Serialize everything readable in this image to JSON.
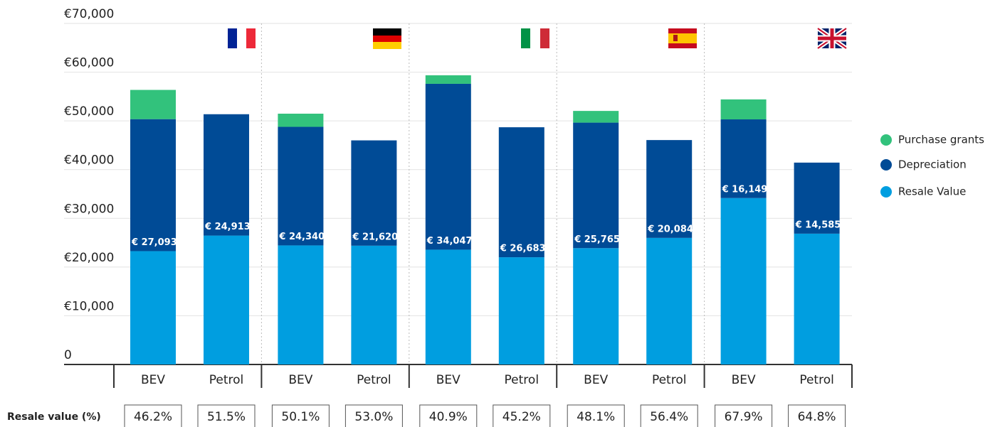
{
  "chart_data": {
    "type": "stacked-bar",
    "categories": [
      "BEV",
      "Petrol",
      "BEV",
      "Petrol",
      "BEV",
      "Petrol",
      "BEV",
      "Petrol",
      "BEV",
      "Petrol"
    ],
    "series": [
      {
        "name": "Resale Value",
        "color": "#009ee0",
        "values": [
          23265,
          26454,
          24438,
          24380,
          23562,
          22009,
          23879,
          25980,
          34160,
          26850
        ]
      },
      {
        "name": "Depreciation",
        "color": "#004b96",
        "values": [
          27093,
          24913,
          24340,
          21620,
          34047,
          26683,
          25765,
          20084,
          16149,
          14585
        ],
        "value_labels": [
          "€ 27,093",
          "€ 24,913",
          "€ 24,340",
          "€ 21,620",
          "€ 34,047",
          "€ 26,683",
          "€ 25,765",
          "€ 20,084",
          "€ 16,149",
          "€ 14,585"
        ]
      },
      {
        "name": "Purchase grants",
        "color": "#32c27c",
        "values": [
          6000,
          null,
          2700,
          null,
          1750,
          null,
          2400,
          null,
          4100,
          null
        ]
      }
    ],
    "ylim": [
      0,
      70000
    ],
    "yticks": [
      0,
      {
        "value": 10000,
        "label": "€10,000"
      },
      {
        "value": 20000,
        "label": "€20,000"
      },
      {
        "value": 30000,
        "label": "€30,000"
      },
      {
        "value": 40000,
        "label": "€40,000"
      },
      {
        "value": 50000,
        "label": "€50,000"
      },
      {
        "value": 60000,
        "label": "€60,000"
      },
      {
        "value": 70000,
        "label": "€70,000"
      }
    ],
    "grid": true,
    "legend": "right",
    "resale_table": {
      "label": "Resale value (%)",
      "cells": [
        "46.2%",
        "51.5%",
        "50.1%",
        "53.0%",
        "40.9%",
        "45.2%",
        "48.1%",
        "56.4%",
        "67.9%",
        "64.8%"
      ]
    }
  }
}
